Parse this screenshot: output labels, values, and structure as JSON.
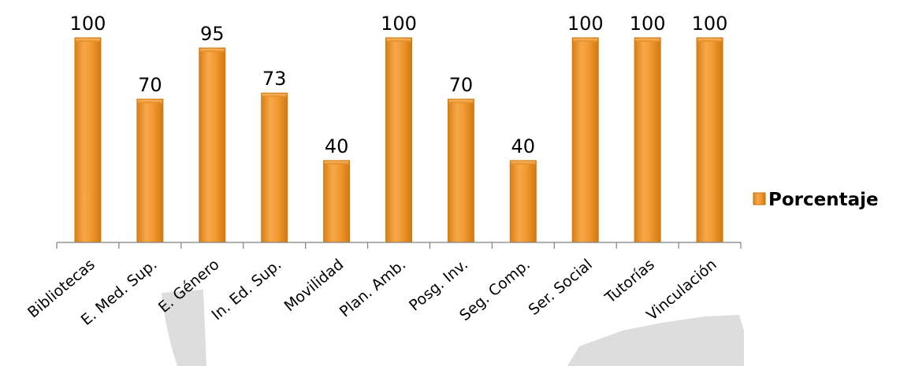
{
  "chart_data": {
    "type": "bar",
    "categories": [
      "Bibliotecas",
      "E. Med. Sup.",
      "E. Género",
      "In. Ed. Sup.",
      "Movilidad",
      "Plan. Amb.",
      "Posg.  Inv.",
      "Seg. Comp.",
      "Ser. Social",
      "Tutorías",
      "Vinculación"
    ],
    "series": [
      {
        "name": "Porcentaje",
        "values": [
          100,
          70,
          95,
          73,
          40,
          100,
          70,
          40,
          100,
          100,
          100
        ]
      }
    ],
    "ylim": [
      0,
      100
    ],
    "grid": false,
    "legend": "right",
    "bar_color": "#F29B2E",
    "bar_edge_color": "#D27A10"
  },
  "legend": {
    "label": "Porcentaje"
  }
}
